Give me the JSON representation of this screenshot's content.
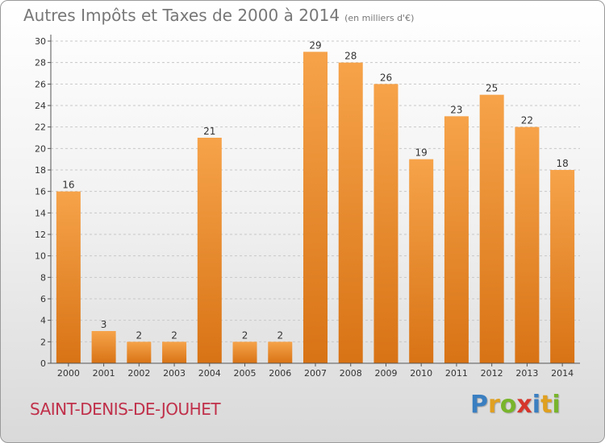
{
  "header": {
    "title": "Autres Impôts et Taxes de 2000 à 2014",
    "unit": "(en milliers d'€)"
  },
  "footer": {
    "commune": "SAINT-DENIS-DE-JOUHET",
    "brand": "Proxiti"
  },
  "colors": {
    "bar_top": "#f6a34a",
    "bar_bottom": "#d87315",
    "commune": "#c0304a"
  },
  "chart_data": {
    "type": "bar",
    "categories": [
      "2000",
      "2001",
      "2002",
      "2003",
      "2004",
      "2005",
      "2006",
      "2007",
      "2008",
      "2009",
      "2010",
      "2011",
      "2012",
      "2013",
      "2014"
    ],
    "values": [
      16,
      3,
      2,
      2,
      21,
      2,
      2,
      29,
      28,
      26,
      19,
      23,
      25,
      22,
      18
    ],
    "ylim": [
      0,
      30
    ],
    "yticks": [
      0,
      2,
      4,
      6,
      8,
      10,
      12,
      14,
      16,
      18,
      20,
      22,
      24,
      26,
      28,
      30
    ],
    "grid": true
  }
}
